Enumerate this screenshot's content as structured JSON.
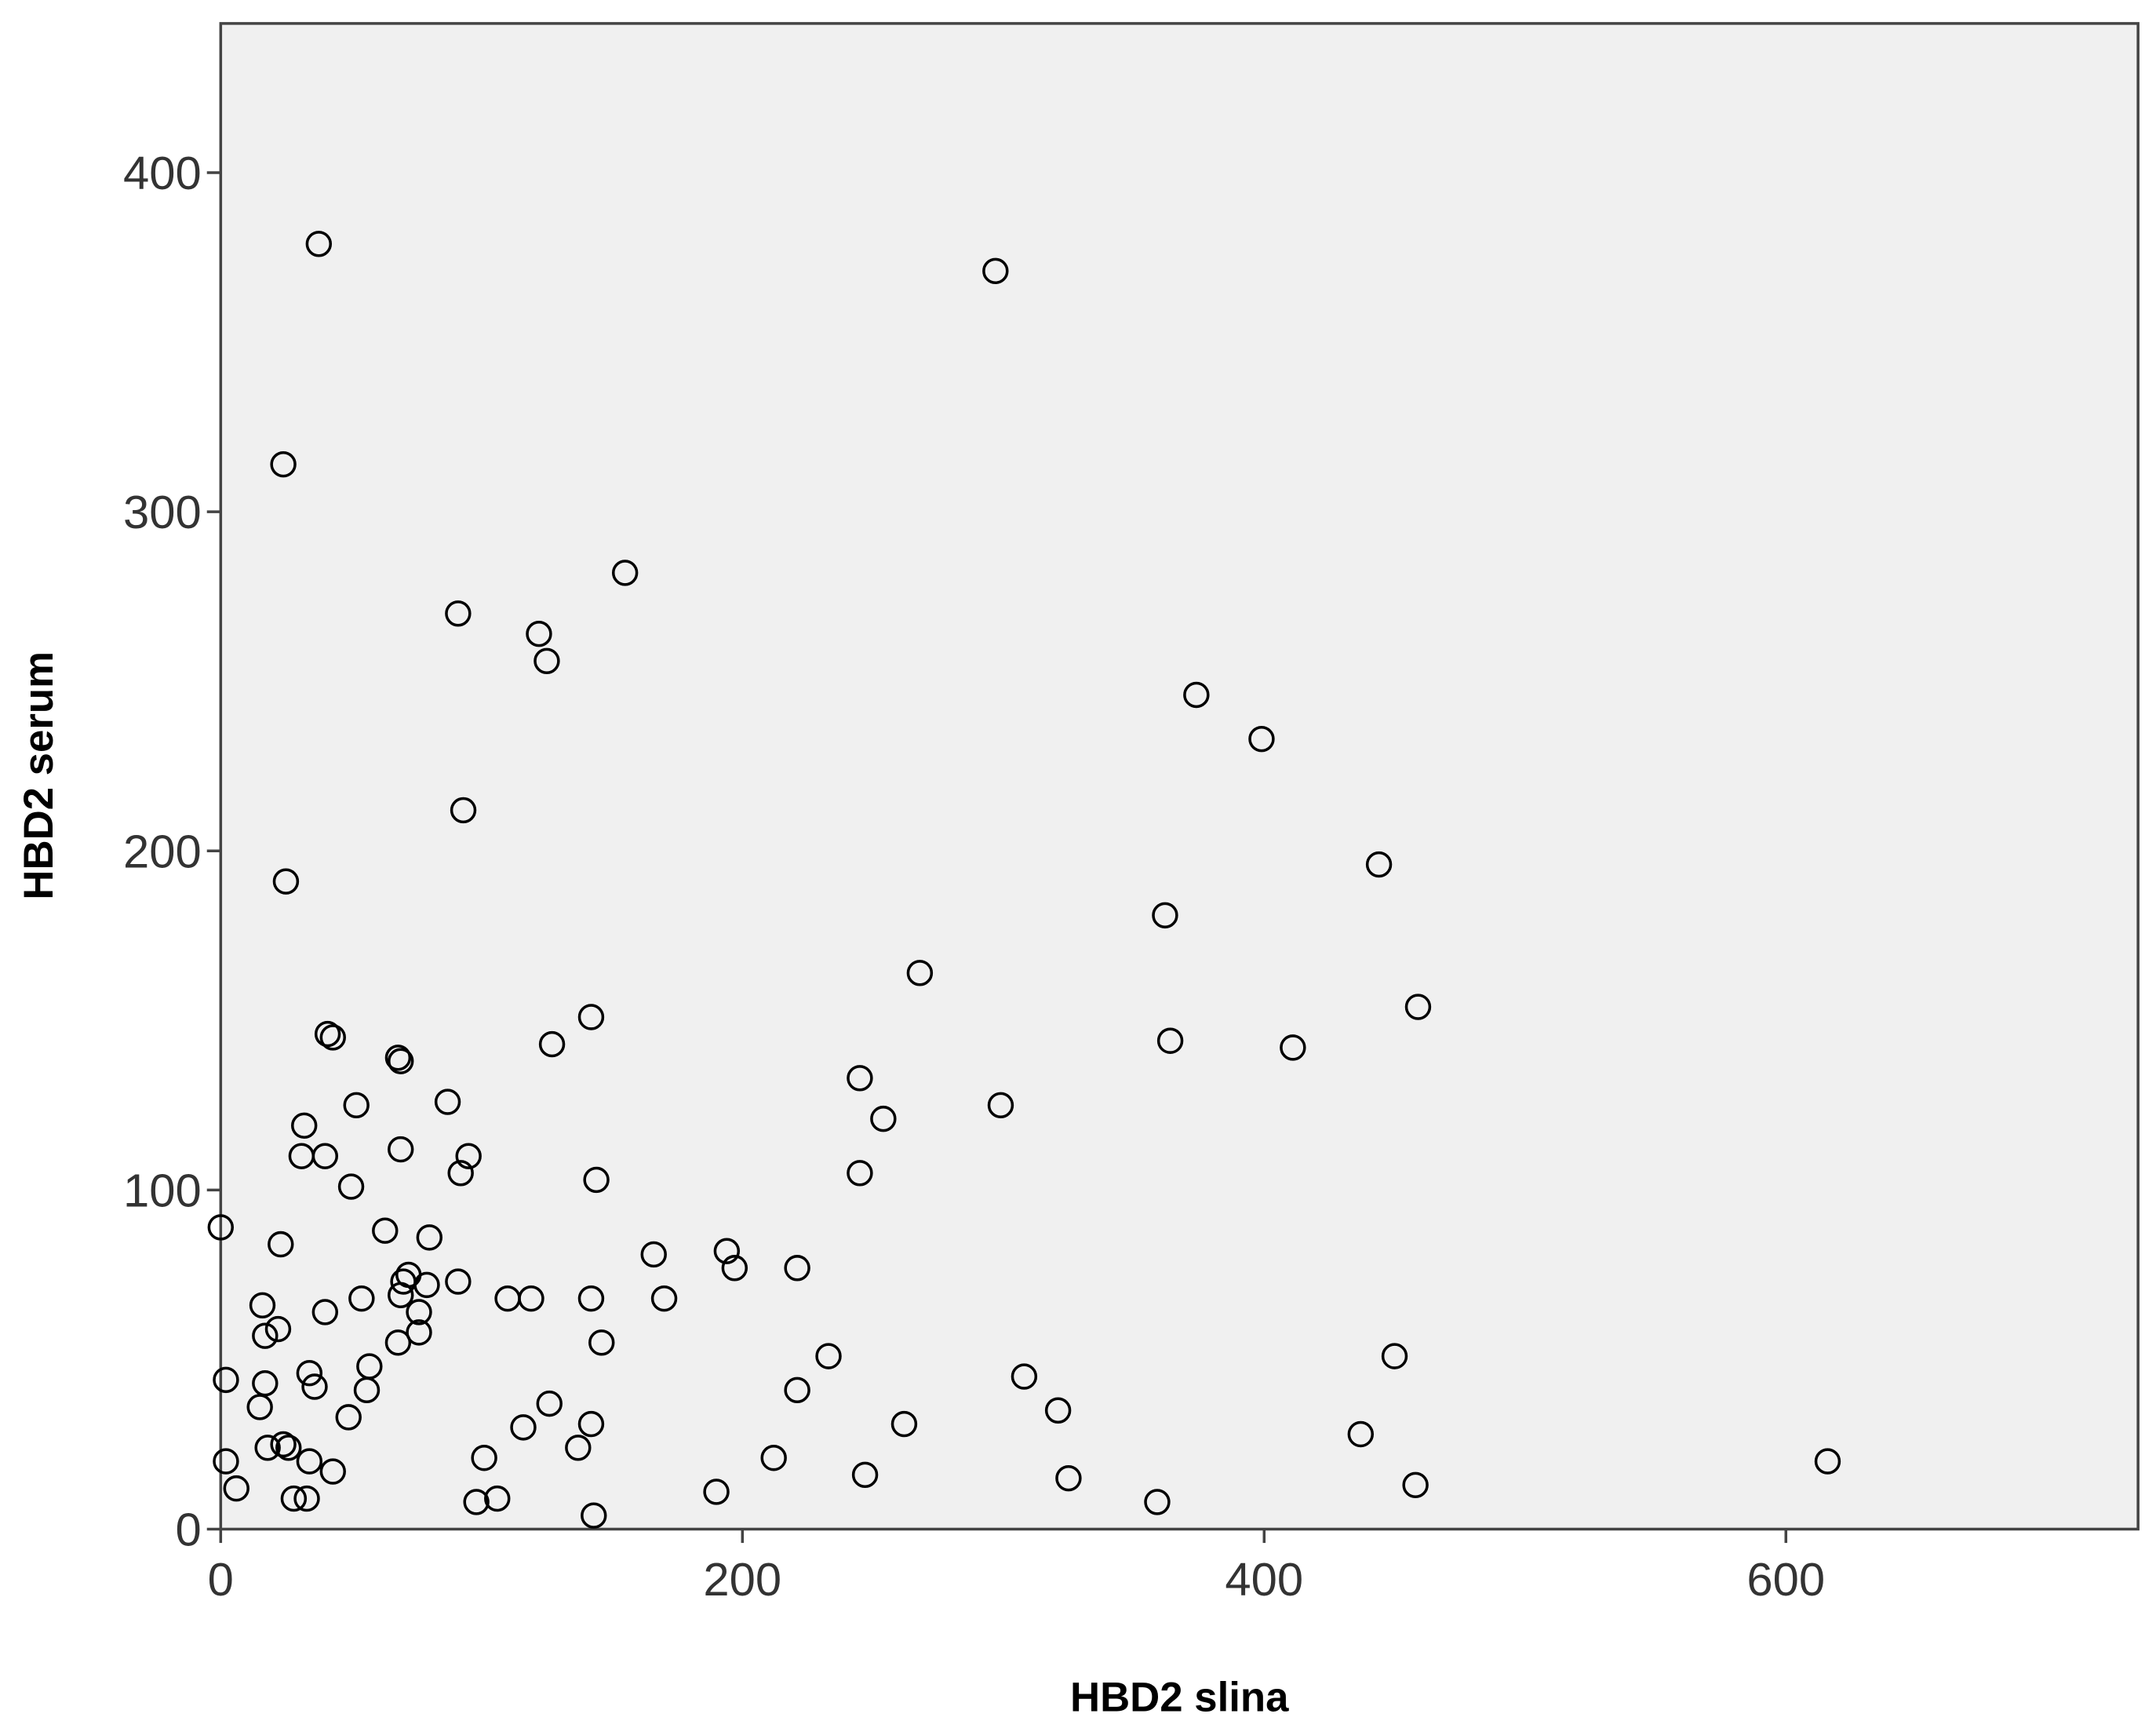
{
  "chart_data": {
    "type": "scatter",
    "x_label": "HBD2 slina",
    "y_label": "HBD2 serum",
    "xlim": [
      0,
      735
    ],
    "ylim": [
      0,
      444
    ],
    "xticks": [
      0,
      200,
      400,
      600
    ],
    "yticks": [
      0,
      100,
      200,
      300,
      400
    ],
    "background": "#f0f0f0",
    "color": "#000000",
    "marker": "open-circle",
    "x": [
      37.6,
      297,
      24,
      155,
      91,
      122,
      125,
      374,
      399,
      93,
      444,
      25,
      362,
      268,
      459,
      142,
      41,
      43,
      364,
      411,
      127,
      68,
      69,
      245,
      52,
      87,
      299,
      254,
      32,
      69,
      31,
      40,
      95,
      92,
      245,
      144,
      50,
      0,
      63,
      80,
      23,
      166,
      194,
      197,
      221,
      72,
      70,
      79,
      91,
      69,
      54,
      110,
      119,
      142,
      170,
      16,
      40,
      76,
      22,
      17,
      76,
      68,
      146,
      450,
      233,
      57,
      34,
      308,
      2,
      17,
      36,
      56,
      221,
      15,
      126,
      321,
      49,
      142,
      262,
      116,
      437,
      18,
      24,
      26,
      137,
      101,
      212,
      34,
      2,
      616,
      43,
      247,
      6,
      325,
      458,
      190,
      28,
      33,
      98,
      106,
      359,
      143
    ],
    "values": [
      379,
      371,
      314,
      282,
      270,
      264,
      256,
      246,
      233,
      212,
      196,
      191,
      181,
      164,
      154,
      151,
      146,
      145,
      144,
      142,
      143,
      139,
      138,
      133,
      125,
      126,
      125,
      121,
      119,
      112,
      110,
      110,
      110,
      105,
      105,
      103,
      101,
      89,
      88,
      86,
      84,
      81,
      82,
      77,
      77,
      75,
      73,
      72,
      73,
      69,
      68,
      68,
      68,
      68,
      68,
      66,
      64,
      64,
      59,
      57,
      58,
      55,
      55,
      51,
      51,
      48,
      46,
      45,
      44,
      43,
      42,
      41,
      41,
      36,
      37,
      35,
      33,
      31,
      31,
      30,
      28,
      24,
      25,
      24,
      24,
      21,
      21,
      20,
      20,
      20,
      17,
      16,
      12,
      15,
      13,
      11,
      9,
      9,
      8,
      9,
      8,
      4
    ]
  }
}
